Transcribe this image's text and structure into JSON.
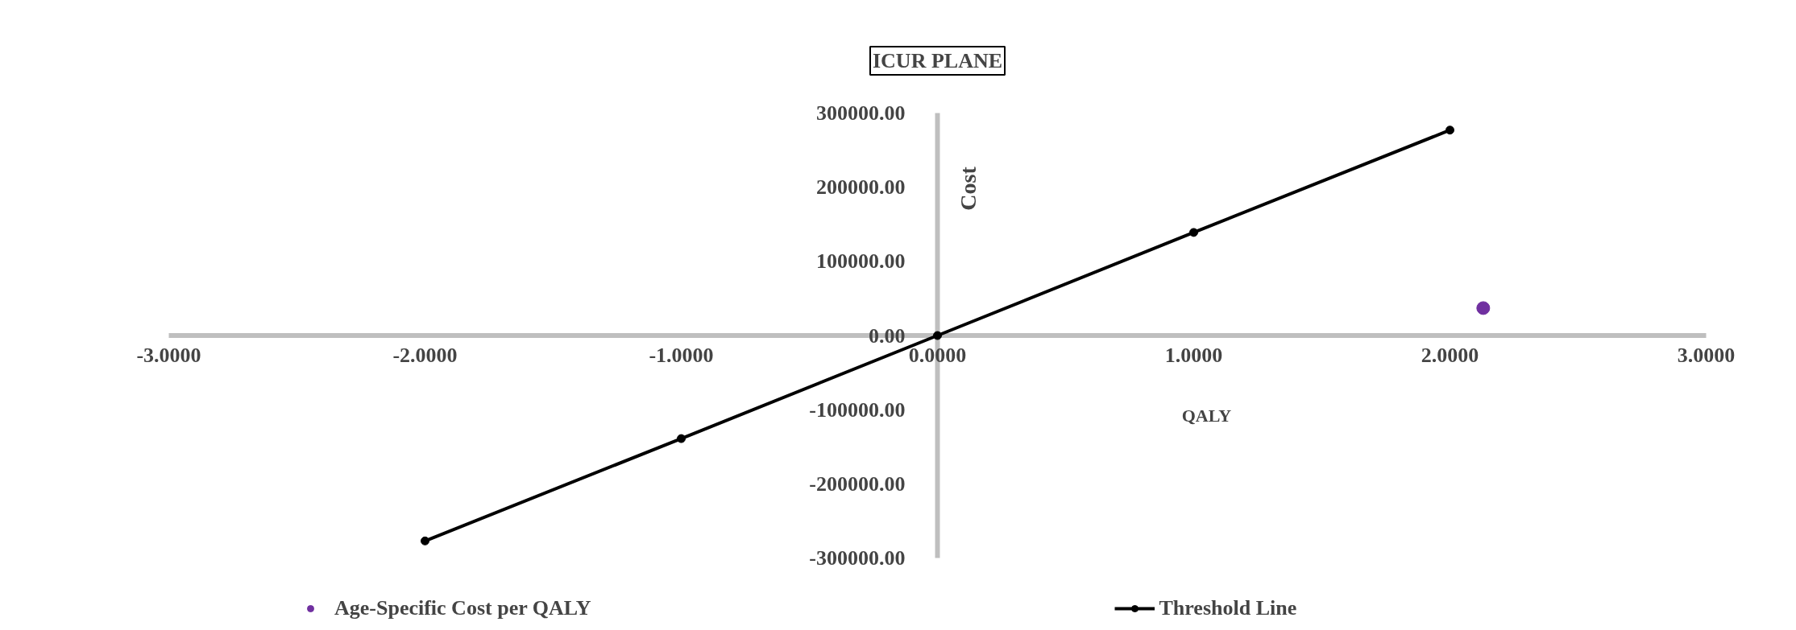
{
  "chart_data": {
    "type": "scatter",
    "title": "ICUR PLANE",
    "xlabel": "QALY",
    "ylabel": "Cost",
    "xlim": [
      -3,
      3
    ],
    "ylim": [
      -300000,
      300000
    ],
    "xticks": [
      {
        "value": -3,
        "label": "-3.0000"
      },
      {
        "value": -2,
        "label": "-2.0000"
      },
      {
        "value": -1,
        "label": "-1.0000"
      },
      {
        "value": 0,
        "label": "0.0000"
      },
      {
        "value": 1,
        "label": "1.0000"
      },
      {
        "value": 2,
        "label": "2.0000"
      },
      {
        "value": 3,
        "label": "3.0000"
      }
    ],
    "yticks": [
      {
        "value": -300000,
        "label": "-300000.00"
      },
      {
        "value": -200000,
        "label": "-200000.00"
      },
      {
        "value": -100000,
        "label": "-100000.00"
      },
      {
        "value": 0,
        "label": "0.00"
      },
      {
        "value": 100000,
        "label": "100000.00"
      },
      {
        "value": 200000,
        "label": "200000.00"
      },
      {
        "value": 300000,
        "label": "300000.00"
      }
    ],
    "grid": false,
    "legend": "bottom",
    "marker": "circle",
    "line_style": "solid",
    "series": [
      {
        "name": "Age-Specific Cost per QALY",
        "color": "#7030a0",
        "x": [
          2.13
        ],
        "values": [
          37000
        ]
      },
      {
        "name": "Threshold Line",
        "type": "line",
        "color": "#000000",
        "x": [
          -2,
          -1,
          0,
          1,
          2
        ],
        "values": [
          -277000,
          -139000,
          0,
          139000,
          277000
        ]
      }
    ]
  }
}
